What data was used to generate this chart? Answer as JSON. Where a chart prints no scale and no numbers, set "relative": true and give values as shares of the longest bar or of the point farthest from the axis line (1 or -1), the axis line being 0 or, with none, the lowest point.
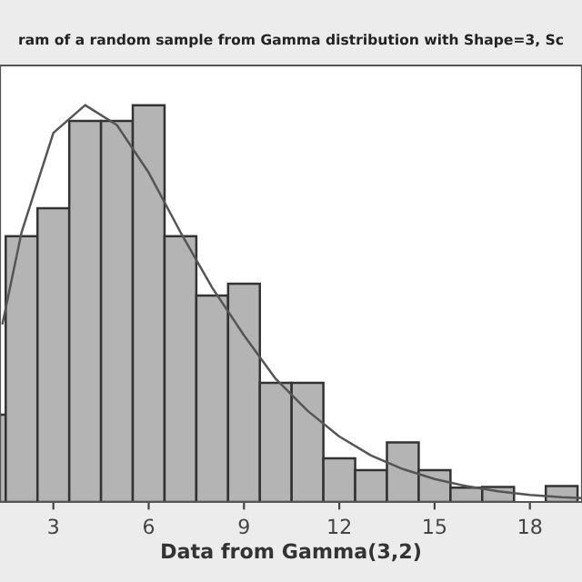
{
  "chart_data": {
    "type": "histogram",
    "title": "ram of a random sample from Gamma distribution with Shape=3, Sc",
    "xlabel": "Data from Gamma(3,2)",
    "relative": true,
    "xlim": [
      1.32,
      19.64
    ],
    "xticks": [
      3,
      6,
      9,
      12,
      15,
      18
    ],
    "tick_labels": "x",
    "grid": false,
    "legend": false,
    "series": [
      {
        "color": "#b4b4b4",
        "bins": [
          0.5,
          1.5,
          2.5,
          3.5,
          4.5,
          5.5,
          6.5,
          7.5,
          8.5,
          9.5,
          10.5,
          11.5,
          12.5,
          13.5,
          14.5,
          15.5,
          16.5,
          17.5,
          18.5,
          19.5
        ],
        "values": [
          0.22,
          0.67,
          0.74,
          0.96,
          0.96,
          1,
          0.67,
          0.52,
          0.55,
          0.3,
          0.3,
          0.11,
          0.08,
          0.15,
          0.08,
          0.036,
          0.038,
          0,
          0.04
        ]
      },
      {
        "type": "line",
        "color": "#555555",
        "x": [
          1.4,
          2,
          3,
          4,
          5,
          6,
          7,
          8,
          9,
          10,
          11,
          12,
          13,
          14,
          15,
          16,
          17,
          18,
          19,
          19.6
        ],
        "values": [
          0.45,
          0.68,
          0.93,
          1,
          0.95,
          0.83,
          0.68,
          0.54,
          0.42,
          0.31,
          0.23,
          0.165,
          0.117,
          0.083,
          0.058,
          0.04,
          0.027,
          0.018,
          0.012,
          0.01
        ]
      }
    ]
  }
}
